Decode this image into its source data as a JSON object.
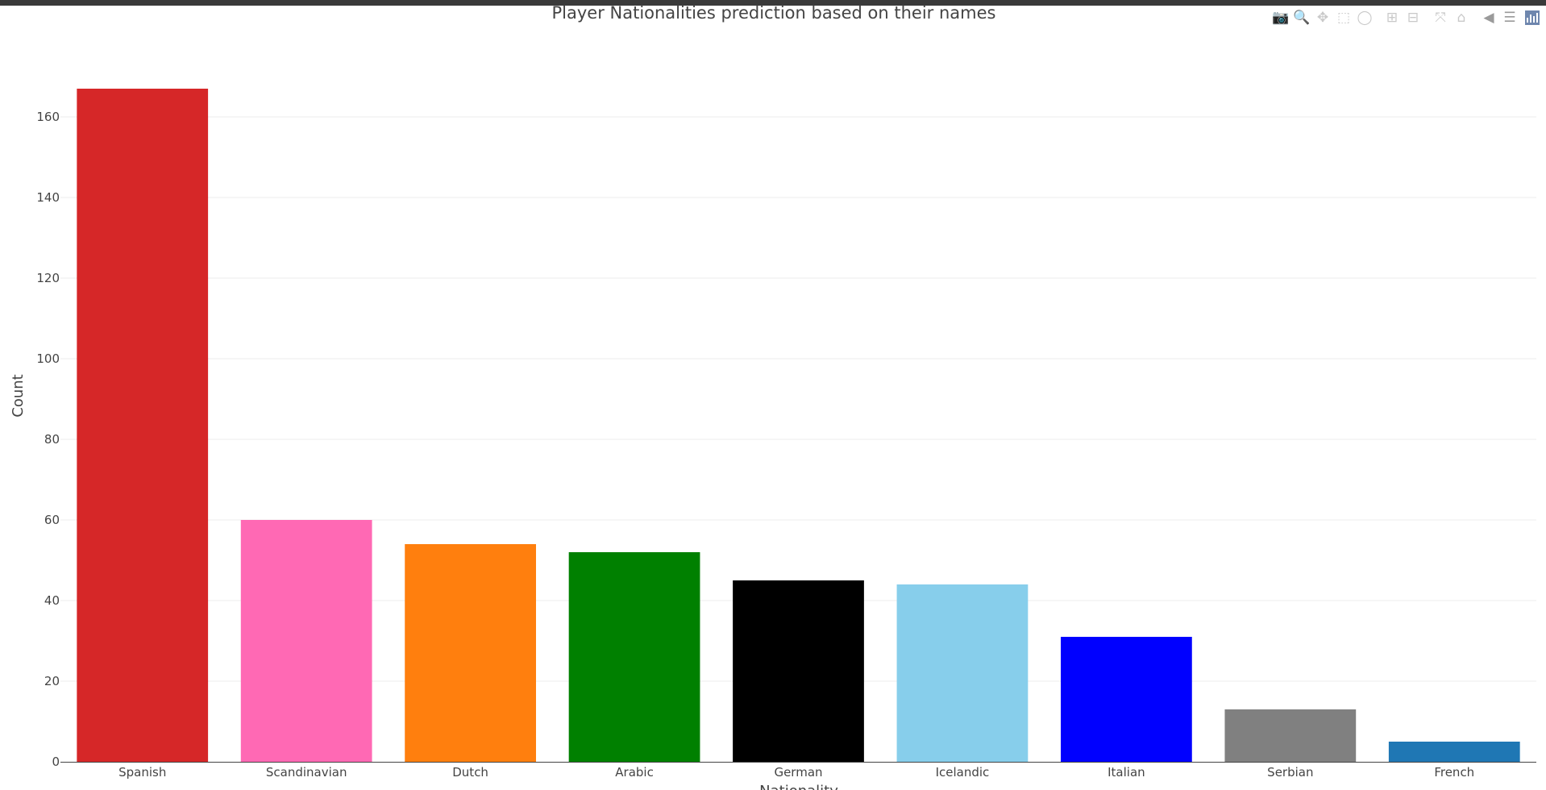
{
  "chart_data": {
    "type": "bar",
    "title": "Player Nationalities prediction based on their names",
    "xlabel": "Nationality",
    "ylabel": "Count",
    "categories": [
      "Spanish",
      "Scandinavian",
      "Dutch",
      "Arabic",
      "German",
      "Icelandic",
      "Italian",
      "Serbian",
      "French"
    ],
    "values": [
      167,
      60,
      54,
      52,
      45,
      44,
      31,
      13,
      5
    ],
    "colors": [
      "#d62728",
      "#ff69b4",
      "#ff7f0e",
      "#008000",
      "#000000",
      "#87ceeb",
      "#0000ff",
      "#808080",
      "#1f77b4"
    ],
    "ylim": [
      0,
      175
    ],
    "yticks": [
      0,
      20,
      40,
      60,
      80,
      100,
      120,
      140,
      160
    ],
    "grid": true,
    "legend": false
  },
  "toolbar": {
    "buttons": [
      {
        "name": "download-plot-button",
        "icon": "camera-icon",
        "glyph": "📷"
      },
      {
        "name": "zoom-button",
        "icon": "zoom-icon",
        "glyph": "🔍"
      },
      {
        "name": "pan-button",
        "icon": "pan-icon",
        "glyph": "✥"
      },
      {
        "name": "box-select-button",
        "icon": "box-select-icon",
        "glyph": "⬚"
      },
      {
        "name": "lasso-select-button",
        "icon": "lasso-icon",
        "glyph": "◯"
      },
      {
        "name": "zoom-in-button",
        "icon": "zoom-in-icon",
        "glyph": "⊞"
      },
      {
        "name": "zoom-out-button",
        "icon": "zoom-out-icon",
        "glyph": "⊟"
      },
      {
        "name": "autoscale-button",
        "icon": "autoscale-icon",
        "glyph": "⤧"
      },
      {
        "name": "reset-axes-button",
        "icon": "home-icon",
        "glyph": "⌂"
      },
      {
        "name": "spike-lines-button",
        "icon": "spikelines-icon",
        "glyph": "◀"
      },
      {
        "name": "compare-hover-button",
        "icon": "compare-icon",
        "glyph": "☰"
      }
    ],
    "logo_icon": "plotly-logo-icon"
  }
}
